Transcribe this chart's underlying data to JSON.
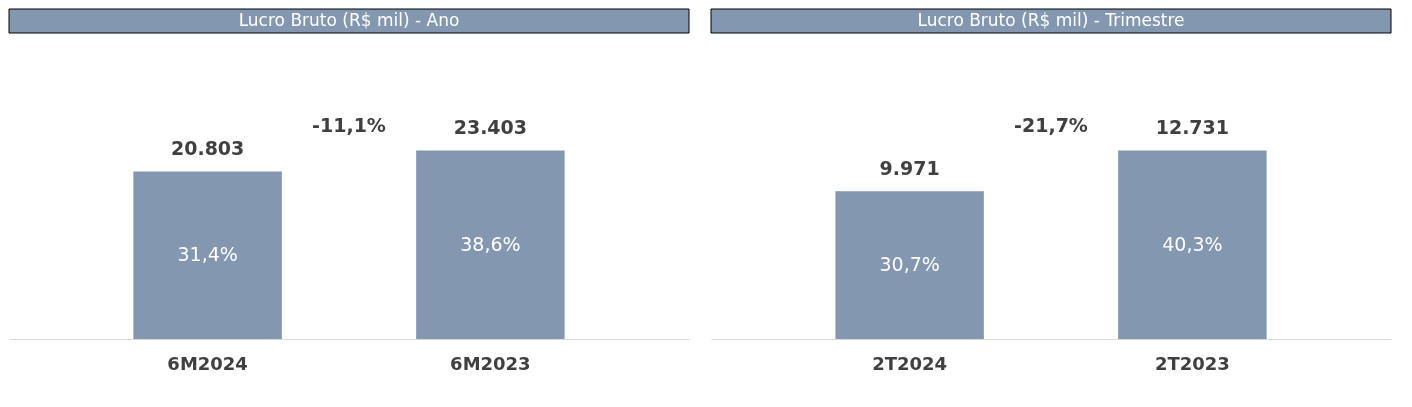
{
  "chart_data": [
    {
      "type": "bar",
      "title": "Lucro Bruto (R$ mil) - Ano",
      "categories": [
        "6M2024",
        "6M2023"
      ],
      "values": [
        20803,
        23403
      ],
      "value_labels": [
        "20.803",
        "23.403"
      ],
      "color": "#8497b0",
      "annotations": [
        "31,4%",
        "38,6%",
        "-11,1%"
      ]
    },
    {
      "type": "bar",
      "title": "Lucro Bruto (R$ mil) - Trimestre",
      "categories": [
        "2T2024",
        "2T2023"
      ],
      "values": [
        9971,
        12731
      ],
      "value_labels": [
        "9.971",
        "12.731"
      ],
      "color": "#8497b0",
      "annotations": [
        "30,7%",
        "40,3%",
        "-21,7%"
      ]
    }
  ]
}
